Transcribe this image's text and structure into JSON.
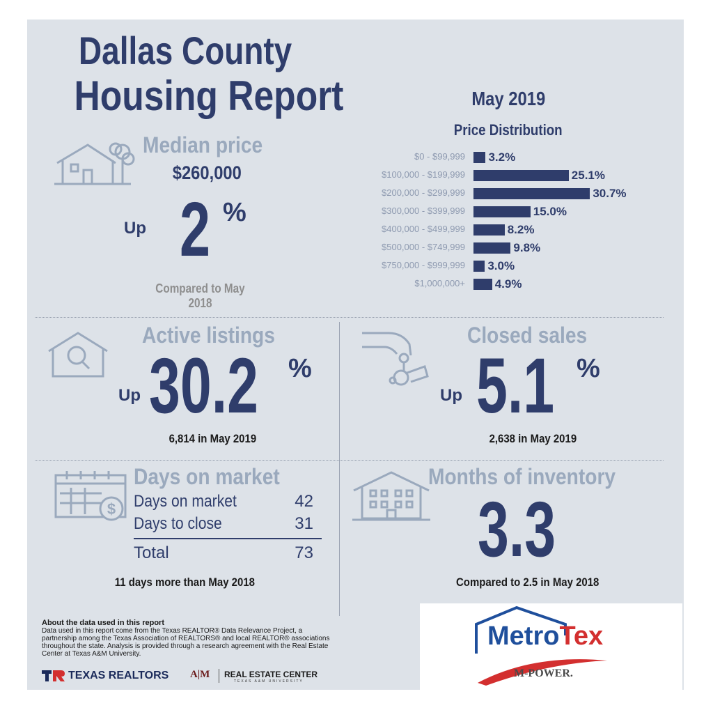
{
  "header": {
    "title_line1": "Dallas County",
    "title_line2": "Housing Report",
    "date": "May 2019"
  },
  "median": {
    "heading": "Median price",
    "price": "$260,000",
    "direction": "Up",
    "change": "2",
    "percent": "%",
    "comparison": "Compared to May 2018"
  },
  "chart_data": {
    "type": "bar",
    "title": "Price Distribution",
    "orientation": "horizontal",
    "categories": [
      "$0 - $99,999",
      "$100,000 - $199,999",
      "$200,000 - $299,999",
      "$300,000 - $399,999",
      "$400,000 - $499,999",
      "$500,000 - $749,999",
      "$750,000 - $999,999",
      "$1,000,000+"
    ],
    "values": [
      3.2,
      25.1,
      30.7,
      15.0,
      8.2,
      9.8,
      3.0,
      4.9
    ],
    "value_labels": [
      "3.2%",
      "25.1%",
      "30.7%",
      "15.0%",
      "8.2%",
      "9.8%",
      "3.0%",
      "4.9%"
    ],
    "unit": "%"
  },
  "active": {
    "heading": "Active listings",
    "direction": "Up",
    "change": "30.2",
    "percent": "%",
    "detail": "6,814 in May 2019"
  },
  "closed": {
    "heading": "Closed sales",
    "direction": "Up",
    "change": "5.1",
    "percent": "%",
    "detail": "2,638 in May 2019"
  },
  "dom": {
    "heading": "Days on market",
    "rows": [
      {
        "label": "Days on market",
        "value": "42"
      },
      {
        "label": "Days to close",
        "value": "31"
      }
    ],
    "total_label": "Total",
    "total_value": "73",
    "comparison": "11 days more than May 2018"
  },
  "inventory": {
    "heading": "Months of inventory",
    "value": "3.3",
    "comparison": "Compared to 2.5 in May 2018"
  },
  "footer": {
    "about_title": "About the data used in this report",
    "about_text": "Data used in this report come from the Texas REALTOR® Data Relevance Project, a partnership among the Texas Association of REALTORS® and local REALTOR® associations throughout the state. Analysis is provided through a research agreement with the Real Estate Center at Texas A&M University.",
    "logo_tr": "TEXAS REALTORS",
    "logo_atm": "A|M",
    "logo_rec": "REAL ESTATE CENTER",
    "logo_rec_sub": "TEXAS A&M UNIVERSITY",
    "logo_metrotex_a": "Metro",
    "logo_metrotex_b": "Tex",
    "logo_mpower": "M-POWER."
  },
  "colors": {
    "navy": "#2f3d6b",
    "light_blue_grey": "#9aa9bd",
    "background": "#dde2e8",
    "red": "#d32f2f",
    "metrotex_blue": "#1f4f9c"
  }
}
